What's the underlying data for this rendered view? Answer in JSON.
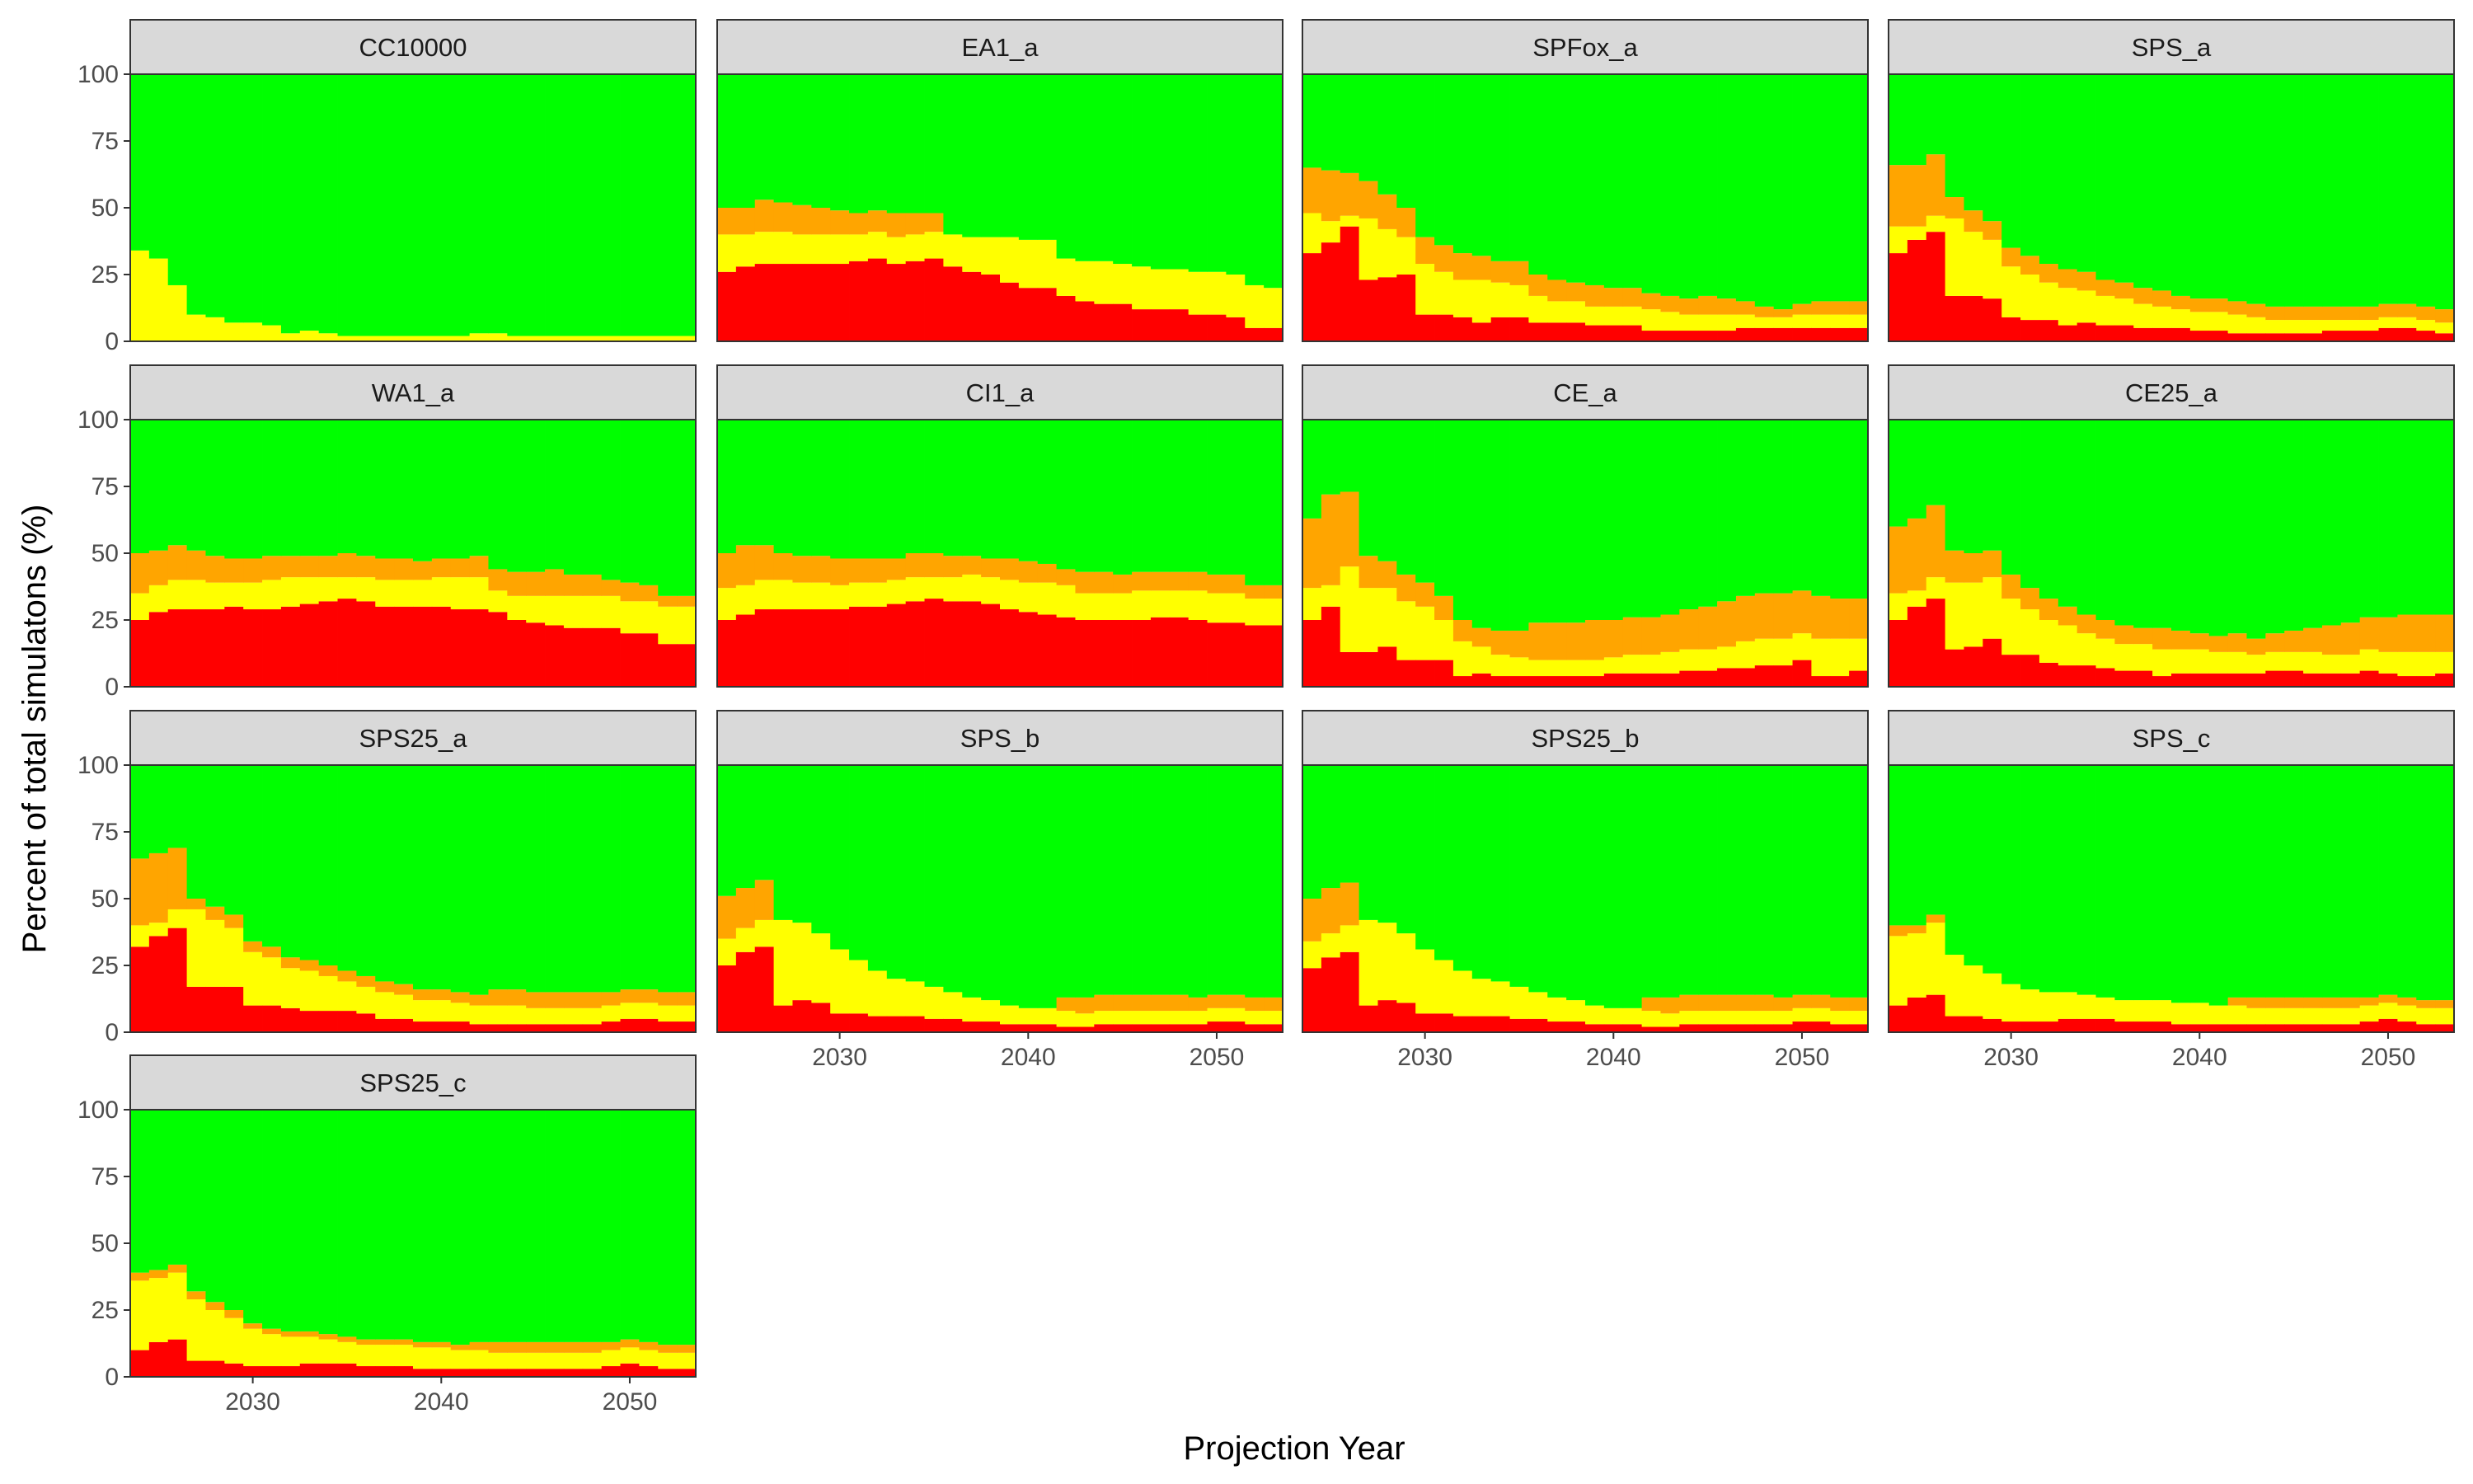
{
  "chart_data": {
    "type": "bar",
    "stacked": true,
    "xlabel": "Projection Year",
    "ylabel": "Percent of total simulatons (%)",
    "ylim": [
      0,
      100
    ],
    "xlim": [
      2023.5,
      2053.5
    ],
    "y_ticks": [
      0,
      25,
      50,
      75,
      100
    ],
    "x_ticks": [
      2030,
      2040,
      2050
    ],
    "years": [
      2024,
      2025,
      2026,
      2027,
      2028,
      2029,
      2030,
      2031,
      2032,
      2033,
      2034,
      2035,
      2036,
      2037,
      2038,
      2039,
      2040,
      2041,
      2042,
      2043,
      2044,
      2045,
      2046,
      2047,
      2048,
      2049,
      2050,
      2051,
      2052,
      2053
    ],
    "layers": [
      {
        "key": "red",
        "color": "#ff0000"
      },
      {
        "key": "yellow",
        "color": "#ffff00"
      },
      {
        "key": "orange",
        "color": "#ffa500"
      },
      {
        "key": "green",
        "color": "#00ff00"
      }
    ],
    "panels": [
      {
        "title": "CC10000",
        "red": [
          0,
          0,
          0,
          0,
          0,
          0,
          0,
          0,
          0,
          0,
          0,
          0,
          0,
          0,
          0,
          0,
          0,
          0,
          0,
          0,
          0,
          0,
          0,
          0,
          0,
          0,
          0,
          0,
          0,
          0
        ],
        "yellow": [
          34,
          31,
          21,
          10,
          9,
          7,
          7,
          6,
          3,
          4,
          3,
          2,
          2,
          2,
          2,
          2,
          2,
          2,
          3,
          3,
          2,
          2,
          2,
          2,
          2,
          2,
          2,
          2,
          2,
          2
        ],
        "orange": [
          0,
          0,
          0,
          0,
          0,
          0,
          0,
          0,
          0,
          0,
          0,
          0,
          0,
          0,
          0,
          0,
          0,
          0,
          0,
          0,
          0,
          0,
          0,
          0,
          0,
          0,
          0,
          0,
          0,
          0
        ]
      },
      {
        "title": "EA1_a",
        "red": [
          26,
          28,
          29,
          29,
          29,
          29,
          29,
          30,
          31,
          29,
          30,
          31,
          28,
          26,
          25,
          22,
          20,
          20,
          17,
          15,
          14,
          14,
          12,
          12,
          12,
          10,
          10,
          9,
          5,
          5
        ],
        "yellow": [
          14,
          12,
          12,
          12,
          11,
          11,
          11,
          10,
          10,
          10,
          10,
          10,
          12,
          13,
          14,
          17,
          18,
          18,
          14,
          15,
          16,
          15,
          16,
          15,
          15,
          16,
          16,
          16,
          16,
          15
        ],
        "orange": [
          10,
          10,
          12,
          11,
          11,
          10,
          9,
          8,
          8,
          9,
          8,
          7,
          0,
          0,
          0,
          0,
          0,
          0,
          0,
          0,
          0,
          0,
          0,
          0,
          0,
          0,
          0,
          0,
          0,
          0
        ]
      },
      {
        "title": "SPFox_a",
        "red": [
          33,
          37,
          43,
          23,
          24,
          25,
          10,
          10,
          9,
          7,
          9,
          9,
          7,
          7,
          7,
          6,
          6,
          6,
          4,
          4,
          4,
          4,
          4,
          5,
          5,
          5,
          5,
          5,
          5,
          5
        ],
        "yellow": [
          15,
          8,
          4,
          23,
          18,
          14,
          19,
          16,
          14,
          16,
          13,
          12,
          10,
          8,
          8,
          7,
          7,
          7,
          8,
          7,
          6,
          6,
          6,
          5,
          4,
          4,
          5,
          5,
          5,
          5
        ],
        "orange": [
          17,
          19,
          16,
          14,
          13,
          11,
          10,
          10,
          10,
          9,
          8,
          9,
          8,
          8,
          7,
          8,
          7,
          7,
          6,
          6,
          6,
          7,
          6,
          5,
          4,
          3,
          4,
          5,
          5,
          5
        ]
      },
      {
        "title": "SPS_a",
        "red": [
          33,
          38,
          41,
          17,
          17,
          16,
          9,
          8,
          8,
          6,
          7,
          6,
          6,
          5,
          5,
          5,
          4,
          4,
          3,
          3,
          3,
          3,
          3,
          4,
          4,
          4,
          5,
          5,
          4,
          3
        ],
        "yellow": [
          10,
          5,
          6,
          29,
          24,
          22,
          19,
          17,
          14,
          14,
          12,
          11,
          10,
          9,
          8,
          7,
          7,
          7,
          7,
          6,
          5,
          5,
          5,
          4,
          4,
          4,
          4,
          4,
          4,
          4
        ],
        "orange": [
          23,
          23,
          23,
          8,
          8,
          7,
          7,
          7,
          7,
          7,
          7,
          6,
          6,
          6,
          6,
          5,
          5,
          5,
          5,
          5,
          5,
          5,
          5,
          5,
          5,
          5,
          5,
          5,
          5,
          5
        ]
      },
      {
        "title": "WA1_a",
        "red": [
          25,
          28,
          29,
          29,
          29,
          30,
          29,
          29,
          30,
          31,
          32,
          33,
          32,
          30,
          30,
          30,
          30,
          29,
          29,
          28,
          25,
          24,
          23,
          22,
          22,
          22,
          20,
          20,
          16,
          16
        ],
        "yellow": [
          10,
          10,
          11,
          11,
          10,
          9,
          10,
          11,
          11,
          10,
          9,
          8,
          9,
          10,
          10,
          10,
          11,
          12,
          12,
          8,
          9,
          10,
          11,
          12,
          12,
          12,
          12,
          12,
          14,
          14
        ],
        "orange": [
          15,
          13,
          13,
          11,
          10,
          9,
          9,
          9,
          8,
          8,
          8,
          9,
          8,
          8,
          8,
          7,
          7,
          7,
          8,
          8,
          9,
          9,
          10,
          8,
          8,
          6,
          7,
          6,
          4,
          4
        ]
      },
      {
        "title": "CI1_a",
        "red": [
          25,
          27,
          29,
          29,
          29,
          29,
          29,
          30,
          30,
          31,
          32,
          33,
          32,
          32,
          31,
          29,
          28,
          27,
          26,
          25,
          25,
          25,
          25,
          26,
          26,
          25,
          24,
          24,
          23,
          23
        ],
        "yellow": [
          12,
          11,
          11,
          11,
          10,
          10,
          9,
          9,
          9,
          9,
          9,
          8,
          9,
          10,
          10,
          11,
          11,
          12,
          12,
          10,
          10,
          10,
          11,
          10,
          10,
          11,
          11,
          11,
          10,
          10
        ],
        "orange": [
          13,
          15,
          13,
          10,
          10,
          10,
          10,
          9,
          9,
          8,
          9,
          9,
          8,
          7,
          7,
          8,
          8,
          7,
          6,
          8,
          8,
          7,
          7,
          7,
          7,
          7,
          7,
          7,
          5,
          5
        ]
      },
      {
        "title": "CE_a",
        "red": [
          25,
          30,
          13,
          13,
          15,
          10,
          10,
          10,
          4,
          5,
          4,
          4,
          4,
          4,
          4,
          4,
          5,
          5,
          5,
          5,
          6,
          6,
          7,
          7,
          8,
          8,
          10,
          4,
          4,
          6
        ],
        "yellow": [
          12,
          8,
          32,
          24,
          22,
          22,
          20,
          15,
          13,
          10,
          8,
          7,
          6,
          6,
          6,
          6,
          6,
          7,
          7,
          8,
          8,
          8,
          8,
          10,
          10,
          10,
          10,
          14,
          14,
          12
        ],
        "orange": [
          26,
          34,
          28,
          12,
          10,
          10,
          9,
          9,
          8,
          7,
          9,
          10,
          14,
          14,
          14,
          15,
          14,
          14,
          14,
          14,
          15,
          16,
          17,
          17,
          17,
          17,
          16,
          16,
          15,
          15
        ]
      },
      {
        "title": "CE25_a",
        "red": [
          25,
          30,
          33,
          14,
          15,
          18,
          12,
          12,
          9,
          8,
          8,
          7,
          6,
          6,
          4,
          5,
          5,
          5,
          5,
          5,
          6,
          6,
          5,
          5,
          5,
          6,
          5,
          4,
          4,
          5
        ],
        "yellow": [
          10,
          6,
          8,
          25,
          24,
          23,
          21,
          17,
          16,
          15,
          12,
          11,
          10,
          10,
          10,
          9,
          9,
          8,
          8,
          7,
          7,
          7,
          8,
          7,
          7,
          8,
          8,
          9,
          9,
          8
        ],
        "orange": [
          25,
          27,
          27,
          12,
          11,
          10,
          9,
          8,
          8,
          7,
          7,
          7,
          7,
          6,
          8,
          7,
          6,
          6,
          7,
          6,
          7,
          8,
          9,
          11,
          12,
          12,
          13,
          14,
          14,
          14
        ]
      },
      {
        "title": "SPS25_a",
        "red": [
          32,
          36,
          39,
          17,
          17,
          17,
          10,
          10,
          9,
          8,
          8,
          8,
          7,
          5,
          5,
          4,
          4,
          4,
          3,
          3,
          3,
          3,
          3,
          3,
          3,
          4,
          5,
          5,
          4,
          4
        ],
        "yellow": [
          8,
          5,
          7,
          29,
          25,
          22,
          20,
          18,
          15,
          15,
          13,
          11,
          10,
          10,
          9,
          8,
          8,
          7,
          7,
          7,
          7,
          6,
          6,
          6,
          6,
          6,
          6,
          6,
          6,
          6
        ],
        "orange": [
          25,
          26,
          23,
          4,
          5,
          5,
          4,
          4,
          4,
          4,
          4,
          4,
          4,
          4,
          4,
          4,
          4,
          4,
          4,
          6,
          6,
          6,
          6,
          6,
          6,
          5,
          5,
          5,
          5,
          5
        ]
      },
      {
        "title": "SPS_b",
        "red": [
          25,
          30,
          32,
          10,
          12,
          11,
          7,
          7,
          6,
          6,
          6,
          5,
          5,
          4,
          4,
          3,
          3,
          3,
          2,
          2,
          3,
          3,
          3,
          3,
          3,
          3,
          4,
          4,
          3,
          3
        ],
        "yellow": [
          10,
          9,
          10,
          32,
          29,
          26,
          24,
          20,
          17,
          14,
          13,
          12,
          10,
          9,
          8,
          7,
          6,
          6,
          6,
          5,
          5,
          5,
          5,
          5,
          5,
          5,
          5,
          5,
          5,
          5
        ],
        "orange": [
          16,
          15,
          15,
          0,
          0,
          0,
          0,
          0,
          0,
          0,
          0,
          0,
          0,
          0,
          0,
          0,
          0,
          0,
          5,
          6,
          6,
          6,
          6,
          6,
          6,
          5,
          5,
          5,
          5,
          5
        ]
      },
      {
        "title": "SPS25_b",
        "red": [
          24,
          28,
          30,
          10,
          12,
          11,
          7,
          7,
          6,
          6,
          6,
          5,
          5,
          4,
          4,
          3,
          3,
          3,
          2,
          2,
          3,
          3,
          3,
          3,
          3,
          3,
          4,
          4,
          3,
          3
        ],
        "yellow": [
          10,
          9,
          10,
          32,
          29,
          26,
          24,
          20,
          17,
          14,
          13,
          12,
          10,
          9,
          8,
          7,
          6,
          6,
          6,
          5,
          5,
          5,
          5,
          5,
          5,
          5,
          5,
          5,
          5,
          5
        ],
        "orange": [
          16,
          17,
          16,
          0,
          0,
          0,
          0,
          0,
          0,
          0,
          0,
          0,
          0,
          0,
          0,
          0,
          0,
          0,
          5,
          6,
          6,
          6,
          6,
          6,
          6,
          5,
          5,
          5,
          5,
          5
        ]
      },
      {
        "title": "SPS_c",
        "red": [
          10,
          13,
          14,
          6,
          6,
          5,
          4,
          4,
          4,
          5,
          5,
          5,
          4,
          4,
          4,
          3,
          3,
          3,
          3,
          3,
          3,
          3,
          3,
          3,
          3,
          4,
          5,
          4,
          3,
          3
        ],
        "yellow": [
          26,
          24,
          27,
          23,
          19,
          17,
          14,
          12,
          11,
          10,
          9,
          8,
          8,
          8,
          8,
          8,
          8,
          7,
          7,
          6,
          6,
          6,
          6,
          6,
          6,
          6,
          6,
          6,
          6,
          6
        ],
        "orange": [
          4,
          3,
          3,
          0,
          0,
          0,
          0,
          0,
          0,
          0,
          0,
          0,
          0,
          0,
          0,
          0,
          0,
          0,
          3,
          4,
          4,
          4,
          4,
          4,
          4,
          3,
          3,
          3,
          3,
          3
        ]
      },
      {
        "title": "SPS25_c",
        "red": [
          10,
          13,
          14,
          6,
          6,
          5,
          4,
          4,
          4,
          5,
          5,
          5,
          4,
          4,
          4,
          3,
          3,
          3,
          3,
          3,
          3,
          3,
          3,
          3,
          3,
          4,
          5,
          4,
          3,
          3
        ],
        "yellow": [
          26,
          24,
          25,
          23,
          19,
          17,
          14,
          12,
          11,
          10,
          9,
          8,
          8,
          8,
          8,
          8,
          8,
          7,
          7,
          6,
          6,
          6,
          6,
          6,
          6,
          6,
          6,
          6,
          6,
          6
        ],
        "orange": [
          3,
          3,
          3,
          3,
          3,
          3,
          2,
          2,
          2,
          2,
          2,
          2,
          2,
          2,
          2,
          2,
          2,
          2,
          3,
          4,
          4,
          4,
          4,
          4,
          4,
          3,
          3,
          3,
          3,
          3
        ]
      }
    ]
  }
}
